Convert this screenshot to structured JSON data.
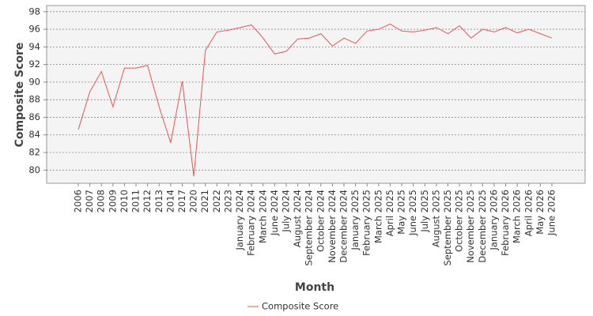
{
  "chart_data": {
    "type": "line",
    "x_label": "Month",
    "y_label": "Composite Score",
    "categories": [
      "2006",
      "2007",
      "2008",
      "2009",
      "2010",
      "2011",
      "2012",
      "2013",
      "2014",
      "2017",
      "2020",
      "2021",
      "2022",
      "2023",
      "January 2024",
      "February 2024",
      "March 2024",
      "June 2024",
      "July 2024",
      "August 2024",
      "September 2024",
      "October 2024",
      "November 2024",
      "December 2024",
      "January 2025",
      "February 2025",
      "March 2025",
      "April 2025",
      "May 2025",
      "June 2025",
      "July 2025",
      "August 2025",
      "September 2025",
      "October 2025",
      "November 2025",
      "December 2025",
      "January 2026",
      "February 2026",
      "March 2026",
      "April 2026",
      "May 2026",
      "June 2026"
    ],
    "series": [
      {
        "name": "Composite Score",
        "color": "#f05252",
        "values": [
          84.6,
          88.9,
          91.2,
          87.2,
          91.6,
          91.6,
          91.9,
          87.2,
          83.1,
          90.1,
          79.3,
          93.6,
          95.7,
          95.9,
          96.2,
          96.5,
          95.0,
          93.2,
          93.5,
          94.9,
          95.0,
          95.5,
          94.1,
          95.0,
          94.4,
          95.8,
          96.0,
          96.6,
          95.8,
          95.7,
          95.9,
          96.2,
          95.5,
          96.4,
          95.0,
          96.0,
          95.7,
          96.2,
          95.6,
          96.0,
          95.5,
          95.0
        ]
      }
    ],
    "ylim": [
      78.5,
      98.7
    ],
    "yticks": [
      80,
      82,
      84,
      86,
      88,
      90,
      92,
      94,
      96,
      98
    ],
    "grid": true,
    "legend": "bottom"
  }
}
